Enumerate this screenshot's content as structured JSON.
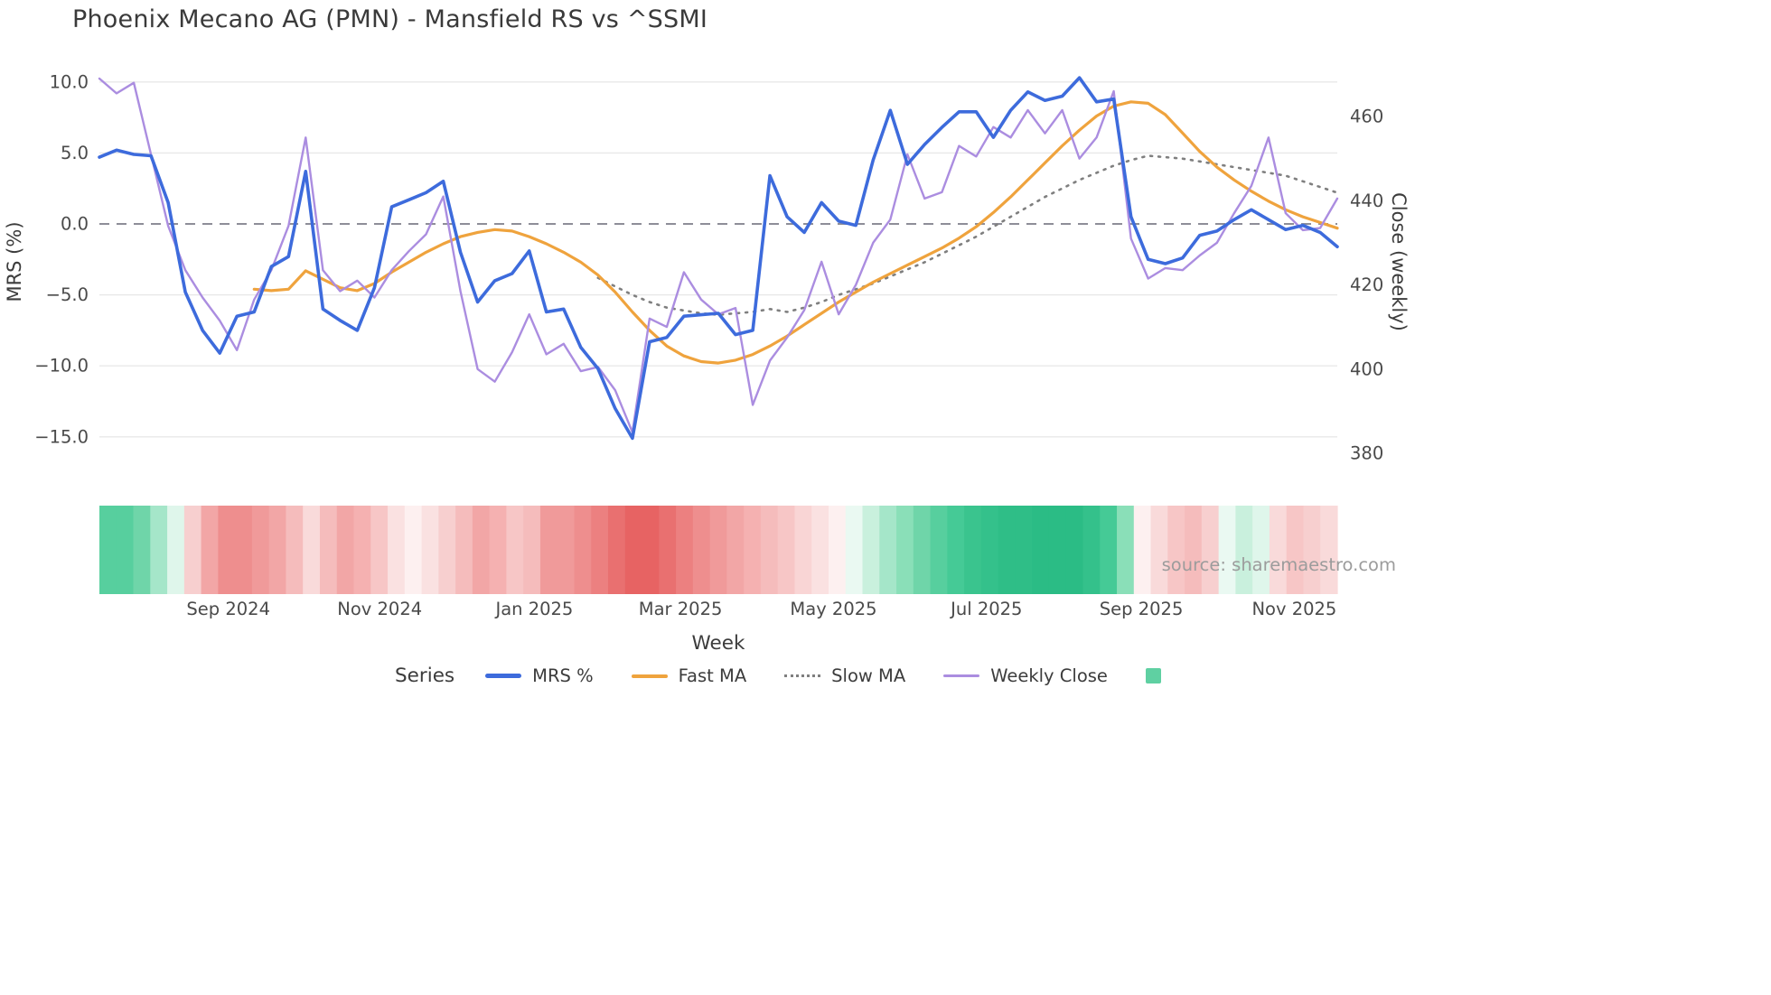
{
  "page": {
    "source": "source: sharemaestro.com"
  },
  "chart_data": {
    "type": "line",
    "title": "Phoenix Mecano AG (PMN) - Mansfield RS vs ^SSMI",
    "xlabel": "Week",
    "y_left_label": "MRS (%)",
    "y_right_label": "Close (weekly)",
    "y_left_ticks": [
      10.0,
      5.0,
      0.0,
      -5.0,
      -10.0,
      -15.0
    ],
    "y_right_ticks": [
      460,
      440,
      420,
      400,
      380
    ],
    "y_left_range": [
      -16.5,
      11.5
    ],
    "y_right_range": [
      375,
      472
    ],
    "grid": true,
    "zero_line_value": 0,
    "x_ticks": [
      {
        "label": "Sep 2024",
        "index": 7.5
      },
      {
        "label": "Nov 2024",
        "index": 16.3
      },
      {
        "label": "Jan 2025",
        "index": 25.3
      },
      {
        "label": "Mar 2025",
        "index": 33.8
      },
      {
        "label": "May 2025",
        "index": 42.7
      },
      {
        "label": "Jul 2025",
        "index": 51.6
      },
      {
        "label": "Sep 2025",
        "index": 60.6
      },
      {
        "label": "Nov 2025",
        "index": 69.5
      }
    ],
    "series": [
      {
        "name": "MRS %",
        "axis": "left",
        "color": "#3d6bdc",
        "width": 3.6,
        "dash": null,
        "z": 4,
        "values": [
          4.7,
          5.2,
          4.9,
          4.8,
          1.5,
          -4.8,
          -7.5,
          -9.1,
          -6.5,
          -6.2,
          -3.0,
          -2.3,
          3.7,
          -6.0,
          -6.8,
          -7.5,
          -4.5,
          1.2,
          1.7,
          2.2,
          3.0,
          -2.0,
          -5.5,
          -4.0,
          -3.5,
          -1.9,
          -6.2,
          -6.0,
          -8.7,
          -10.2,
          -13.0,
          -15.1,
          -8.3,
          -8.0,
          -6.5,
          -6.4,
          -6.3,
          -7.8,
          -7.5,
          3.4,
          0.5,
          -0.6,
          1.5,
          0.2,
          -0.1,
          4.5,
          8.0,
          4.2,
          5.6,
          6.8,
          7.9,
          7.9,
          6.1,
          8.0,
          9.3,
          8.7,
          9.0,
          10.3,
          8.6,
          8.8,
          0.5,
          -2.5,
          -2.8,
          -2.4,
          -0.8,
          -0.5,
          0.3,
          1.0,
          0.3,
          -0.4,
          -0.1,
          -0.6,
          -1.6
        ]
      },
      {
        "name": "Fast MA",
        "axis": "left",
        "color": "#efa33d",
        "width": 3.2,
        "dash": null,
        "z": 2,
        "values": [
          null,
          null,
          null,
          null,
          null,
          null,
          null,
          null,
          null,
          -4.6,
          -4.7,
          -4.6,
          -3.3,
          -3.9,
          -4.5,
          -4.7,
          -4.2,
          -3.4,
          -2.7,
          -2.0,
          -1.4,
          -0.9,
          -0.6,
          -0.4,
          -0.5,
          -0.9,
          -1.4,
          -2.0,
          -2.7,
          -3.6,
          -4.8,
          -6.2,
          -7.5,
          -8.6,
          -9.3,
          -9.7,
          -9.8,
          -9.6,
          -9.2,
          -8.6,
          -7.9,
          -7.1,
          -6.3,
          -5.5,
          -4.8,
          -4.1,
          -3.5,
          -2.9,
          -2.3,
          -1.7,
          -1.0,
          -0.2,
          0.8,
          1.9,
          3.1,
          4.3,
          5.5,
          6.6,
          7.6,
          8.3,
          8.6,
          8.5,
          7.7,
          6.4,
          5.1,
          4.0,
          3.1,
          2.3,
          1.6,
          1.0,
          0.5,
          0.1,
          -0.3
        ]
      },
      {
        "name": "Slow MA",
        "axis": "left",
        "color": "#7f7f7f",
        "width": 2.6,
        "dash": "2 7",
        "z": 1,
        "values": [
          null,
          null,
          null,
          null,
          null,
          null,
          null,
          null,
          null,
          null,
          null,
          null,
          null,
          null,
          null,
          null,
          null,
          null,
          null,
          null,
          null,
          null,
          null,
          null,
          null,
          null,
          null,
          null,
          null,
          -3.8,
          -4.4,
          -5.0,
          -5.5,
          -5.9,
          -6.1,
          -6.3,
          -6.4,
          -6.3,
          -6.2,
          -6.0,
          -6.2,
          -5.9,
          -5.5,
          -5.0,
          -4.6,
          -4.2,
          -3.7,
          -3.2,
          -2.7,
          -2.1,
          -1.5,
          -0.9,
          -0.2,
          0.5,
          1.2,
          1.9,
          2.5,
          3.1,
          3.6,
          4.1,
          4.5,
          4.8,
          4.7,
          4.6,
          4.4,
          4.2,
          4.0,
          3.8,
          3.6,
          3.4,
          3.0,
          2.6,
          2.2
        ]
      },
      {
        "name": "Weekly Close",
        "axis": "right",
        "color": "#ab8de0",
        "width": 2.4,
        "dash": null,
        "z": 3,
        "values": [
          469,
          465.5,
          468,
          451,
          434,
          423.5,
          417,
          411.5,
          404.5,
          416.5,
          423.5,
          434,
          455,
          423.5,
          418.5,
          421,
          417,
          423.5,
          428,
          432,
          441,
          418.5,
          400,
          397,
          404,
          413,
          403.5,
          406,
          399.5,
          400.5,
          395,
          385,
          412,
          410,
          423,
          416.5,
          413,
          414.5,
          391.5,
          402,
          407.5,
          414,
          425.5,
          413,
          420,
          430,
          435.5,
          451,
          440.5,
          442,
          453,
          450.5,
          457.5,
          455,
          461.5,
          456,
          461.5,
          450,
          455,
          466,
          431,
          421.5,
          424,
          423.5,
          427,
          430,
          437,
          443.5,
          455,
          437,
          433,
          433.5,
          440.5
        ]
      }
    ],
    "heatmap": {
      "colors": [
        "#57cf9e",
        "#57cf9e",
        "#6fd5a9",
        "#a5e6c9",
        "#dff6eb",
        "#f7cfcf",
        "#f2a6a6",
        "#ee8e8e",
        "#ee8e8e",
        "#f09a9a",
        "#f2a6a6",
        "#f5bcbc",
        "#f9dada",
        "#f5bcbc",
        "#f2a6a6",
        "#f5b1b1",
        "#f7c6c6",
        "#fae1e1",
        "#fdf0f0",
        "#fae1e1",
        "#f7cfcf",
        "#f5bcbc",
        "#f2a6a6",
        "#f5b1b1",
        "#f7c6c6",
        "#f5bcbc",
        "#f09a9a",
        "#f09a9a",
        "#ee8e8e",
        "#ec8080",
        "#e97070",
        "#e76363",
        "#e76363",
        "#e97070",
        "#ec8080",
        "#ee8e8e",
        "#f09a9a",
        "#f2a6a6",
        "#f5b1b1",
        "#f5bcbc",
        "#f7c6c6",
        "#f9d5d5",
        "#fae1e1",
        "#fdf0f0",
        "#eaf9f2",
        "#c9f0dd",
        "#a5e6c9",
        "#8adfb8",
        "#6fd5a9",
        "#57cf9e",
        "#45ca96",
        "#3ac48e",
        "#34c18b",
        "#2fbe87",
        "#2fbe87",
        "#2bbc85",
        "#2bbc85",
        "#2bbc85",
        "#34c18b",
        "#45ca96",
        "#8adfb8",
        "#fdf0f0",
        "#f9dada",
        "#f7c6c6",
        "#f5bcbc",
        "#f7cfcf",
        "#eaf9f2",
        "#c9f0dd",
        "#dff6eb",
        "#f9dada",
        "#f7c6c6",
        "#f7cfcf",
        "#f9dada"
      ]
    },
    "legend": {
      "title": "Series",
      "items": [
        {
          "label": "MRS %",
          "type": "line",
          "color": "#3d6bdc",
          "thickness": 5
        },
        {
          "label": "Fast MA",
          "type": "line",
          "color": "#efa33d",
          "thickness": 4
        },
        {
          "label": "Slow MA",
          "type": "dotted",
          "color": "#7f7f7f",
          "thickness": 3
        },
        {
          "label": "Weekly Close",
          "type": "line",
          "color": "#ab8de0",
          "thickness": 3
        },
        {
          "label": "",
          "type": "square",
          "color": "#5fd0a2",
          "thickness": 0
        }
      ]
    }
  }
}
